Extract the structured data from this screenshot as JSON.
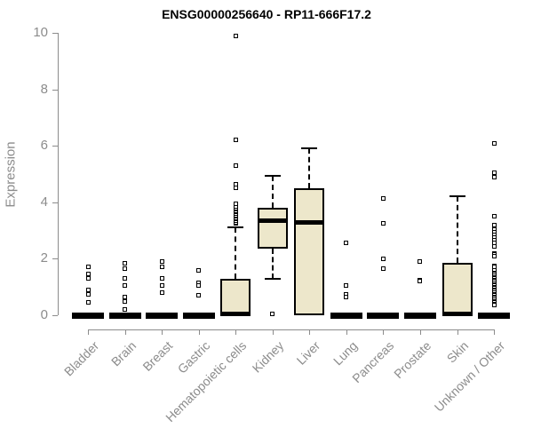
{
  "colors": {
    "box_fill": "#EDE7CB",
    "box_stroke": "#000000",
    "axis": "#8C8C8C",
    "label": "#8C8C8C",
    "title": "#000000",
    "background": "#FFFFFF"
  },
  "chart_data": {
    "type": "boxplot",
    "title": "ENSG00000256640 - RP11-666F17.2",
    "xlabel": "",
    "ylabel": "Expression",
    "ylim": [
      0,
      10
    ],
    "yticks": [
      0,
      2,
      4,
      6,
      8,
      10
    ],
    "grid": "off",
    "legend": "none",
    "categories": [
      "Bladder",
      "Brain",
      "Breast",
      "Gastric",
      "Hematopoietic cells",
      "Kidney",
      "Liver",
      "Lung",
      "Pancreas",
      "Prostate",
      "Skin",
      "Unknown / Other"
    ],
    "boxes": [
      {
        "category": "Bladder",
        "low": 0,
        "q1": 0,
        "median": 0,
        "q3": 0,
        "high": 0,
        "outliers": [
          1.7,
          1.45,
          1.3,
          0.9,
          0.75,
          0.45
        ]
      },
      {
        "category": "Brain",
        "low": 0,
        "q1": 0,
        "median": 0,
        "q3": 0,
        "high": 0,
        "outliers": [
          1.85,
          1.65,
          1.3,
          1.05,
          0.65,
          0.5,
          0.2
        ]
      },
      {
        "category": "Breast",
        "low": 0,
        "q1": 0,
        "median": 0,
        "q3": 0,
        "high": 0,
        "outliers": [
          1.9,
          1.7,
          1.3,
          1.05,
          0.8
        ]
      },
      {
        "category": "Gastric",
        "low": 0,
        "q1": 0,
        "median": 0,
        "q3": 0,
        "high": 0,
        "outliers": [
          1.6,
          1.15,
          1.05,
          0.7
        ]
      },
      {
        "category": "Hematopoietic cells",
        "low": 0,
        "q1": 0,
        "median": 0.05,
        "q3": 1.3,
        "high": 3.1,
        "outliers": [
          3.25,
          3.3,
          3.35,
          3.4,
          3.45,
          3.5,
          3.55,
          3.6,
          3.65,
          3.7,
          3.75,
          3.8,
          3.85,
          3.95,
          4.5,
          4.65,
          5.3,
          6.2,
          9.9
        ]
      },
      {
        "category": "Kidney",
        "low": 1.3,
        "q1": 2.35,
        "median": 3.35,
        "q3": 3.8,
        "high": 4.95,
        "outliers": [
          0.05
        ]
      },
      {
        "category": "Liver",
        "low": 0,
        "q1": 0,
        "median": 3.3,
        "q3": 4.5,
        "high": 5.9,
        "outliers": []
      },
      {
        "category": "Lung",
        "low": 0,
        "q1": 0,
        "median": 0,
        "q3": 0,
        "high": 0,
        "outliers": [
          2.55,
          1.05,
          0.75,
          0.65
        ]
      },
      {
        "category": "Pancreas",
        "low": 0,
        "q1": 0,
        "median": 0,
        "q3": 0,
        "high": 0,
        "outliers": [
          4.15,
          3.25,
          2.0,
          1.65
        ]
      },
      {
        "category": "Prostate",
        "low": 0,
        "q1": 0,
        "median": 0,
        "q3": 0,
        "high": 0,
        "outliers": [
          1.9,
          1.25,
          1.2
        ]
      },
      {
        "category": "Skin",
        "low": 0,
        "q1": 0,
        "median": 0.05,
        "q3": 1.85,
        "high": 4.2,
        "outliers": []
      },
      {
        "category": "Unknown / Other",
        "low": 0,
        "q1": 0,
        "median": 0,
        "q3": 0,
        "high": 0,
        "outliers": [
          6.1,
          5.05,
          4.9,
          3.5,
          3.2,
          3.05,
          2.95,
          2.85,
          2.75,
          2.65,
          2.55,
          2.45,
          2.2,
          2.15,
          2.1,
          1.75,
          1.7,
          1.6,
          1.5,
          1.45,
          1.4,
          1.35,
          1.3,
          1.25,
          1.2,
          1.15,
          1.1,
          1.05,
          1.0,
          0.95,
          0.9,
          0.85,
          0.8,
          0.75,
          0.7,
          0.65,
          0.6,
          0.55,
          0.5,
          0.45,
          0.4,
          0.35
        ]
      }
    ]
  }
}
